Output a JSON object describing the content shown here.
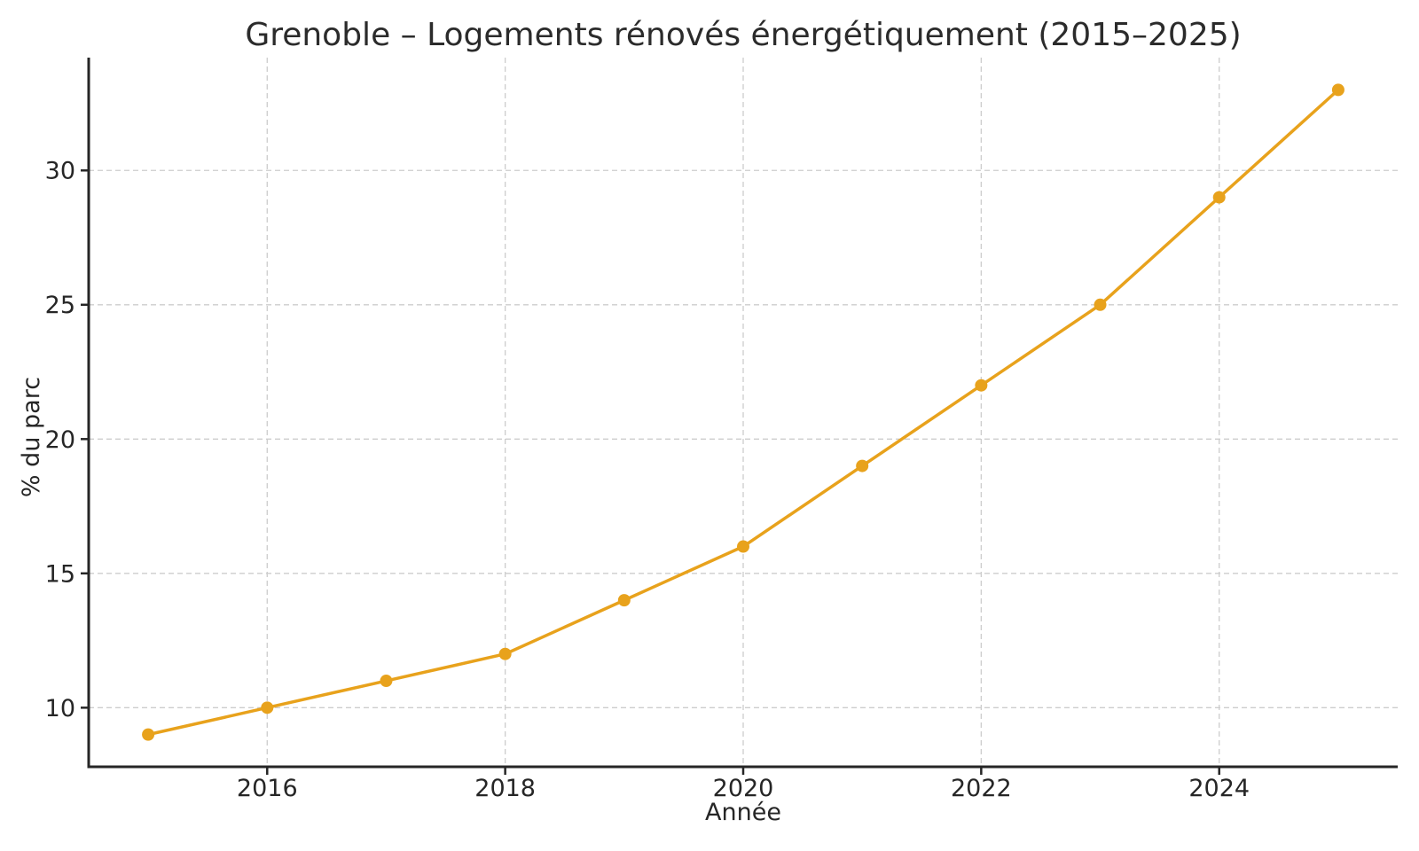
{
  "chart_data": {
    "type": "line",
    "title": "Grenoble – Logements rénovés énergétiquement (2015–2025)",
    "xlabel": "Année",
    "ylabel": "% du parc",
    "x": [
      2015,
      2016,
      2017,
      2018,
      2019,
      2020,
      2021,
      2022,
      2023,
      2024,
      2025
    ],
    "series": [
      {
        "name": "% du parc",
        "values": [
          9,
          10,
          11,
          12,
          14,
          16,
          19,
          22,
          25,
          29,
          33
        ]
      }
    ],
    "xticks": [
      2016,
      2018,
      2020,
      2022,
      2024
    ],
    "yticks": [
      10,
      15,
      20,
      25,
      30
    ],
    "xlim": [
      2014.5,
      2025.5
    ],
    "ylim": [
      7.8,
      34.2
    ],
    "grid": true,
    "grid_style": "dashed",
    "legend": false,
    "marker": "circle",
    "colors": {
      "line": "#E8A21C",
      "marker": "#E8A21C",
      "grid": "#cdcdcd",
      "axis": "#262626",
      "text": "#262626",
      "title": "#2b2b2b",
      "background": "#ffffff"
    }
  }
}
